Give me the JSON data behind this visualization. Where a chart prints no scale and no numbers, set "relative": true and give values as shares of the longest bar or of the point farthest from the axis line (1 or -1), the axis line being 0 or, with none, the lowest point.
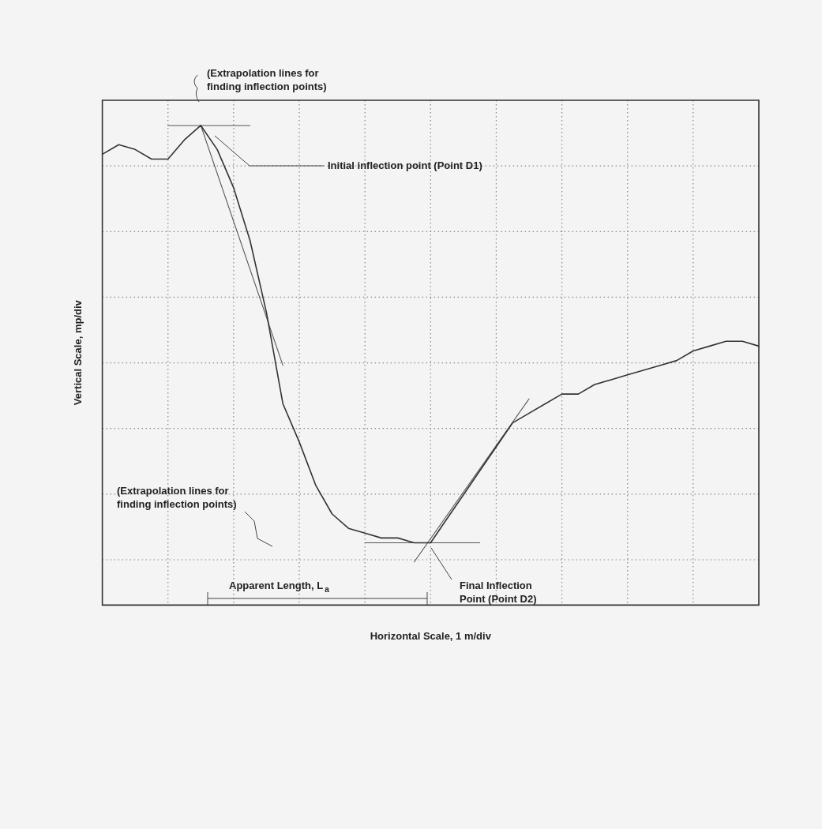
{
  "chart_data": {
    "type": "line",
    "relative": true,
    "xlabel": "Horizontal Scale, 1 m/div",
    "ylabel": "Vertical Scale, mp/div",
    "grid": true,
    "legend": false,
    "marker": "none",
    "categories": [
      null,
      null,
      null,
      null,
      null,
      null,
      null,
      null,
      null,
      null,
      null,
      null,
      null,
      null,
      null,
      null,
      null,
      null,
      null,
      null,
      null,
      null,
      null,
      null,
      null,
      null,
      null,
      null,
      null,
      null,
      null,
      null,
      null,
      null,
      null,
      null,
      null,
      null,
      null,
      null,
      null
    ],
    "series": [
      {
        "color": "#333333",
        "values": [
          0.94,
          0.96,
          0.95,
          0.93,
          0.93,
          0.97,
          1.0,
          0.95,
          0.87,
          0.76,
          0.61,
          0.42,
          0.34,
          0.25,
          0.19,
          0.16,
          0.15,
          0.14,
          0.14,
          0.13,
          0.13,
          0.18,
          0.23,
          0.28,
          0.33,
          0.38,
          0.4,
          0.42,
          0.44,
          0.44,
          0.46,
          0.47,
          0.48,
          0.49,
          0.5,
          0.51,
          0.53,
          0.54,
          0.55,
          0.55,
          0.54
        ]
      },
      {
        "color": "#555555",
        "values": [
          null,
          null,
          null,
          null,
          1.0,
          null,
          null,
          null,
          null,
          1.0,
          null,
          null,
          null,
          null,
          null,
          null,
          null,
          null,
          null,
          null,
          null,
          null,
          null,
          null,
          null,
          null,
          null,
          null,
          null,
          null,
          null,
          null,
          null,
          null,
          null,
          null,
          null,
          null,
          null,
          null,
          null
        ]
      },
      {
        "color": "#555555",
        "values": [
          null,
          null,
          null,
          null,
          null,
          null,
          1.0,
          null,
          null,
          null,
          null,
          0.5,
          null,
          null,
          null,
          null,
          null,
          null,
          null,
          null,
          null,
          null,
          null,
          null,
          null,
          null,
          null,
          null,
          null,
          null,
          null,
          null,
          null,
          null,
          null,
          null,
          null,
          null,
          null,
          null,
          null
        ]
      },
      {
        "color": "#555555",
        "values": [
          null,
          null,
          null,
          null,
          null,
          null,
          null,
          null,
          null,
          null,
          null,
          null,
          null,
          null,
          null,
          null,
          0.13,
          null,
          null,
          null,
          null,
          null,
          null,
          0.13,
          null,
          null,
          null,
          null,
          null,
          null,
          null,
          null,
          null,
          null,
          null,
          null,
          null,
          null,
          null,
          null,
          null
        ]
      },
      {
        "color": "#555555",
        "values": [
          null,
          null,
          null,
          null,
          null,
          null,
          null,
          null,
          null,
          null,
          null,
          null,
          null,
          null,
          null,
          null,
          null,
          null,
          null,
          0.09,
          null,
          null,
          null,
          null,
          null,
          null,
          0.43,
          null,
          null,
          null,
          null,
          null,
          null,
          null,
          null,
          null,
          null,
          null,
          null,
          null,
          null
        ]
      }
    ],
    "annotations": [
      "(Extrapolation lines for\nfinding inflection points)",
      "Initial inflection point (Point D1)",
      "(Extrapolation lines for\nfinding inflection points)",
      "Apparent Length, L$_{a}$",
      "Final Inflection\nPoint (Point D2)"
    ]
  }
}
